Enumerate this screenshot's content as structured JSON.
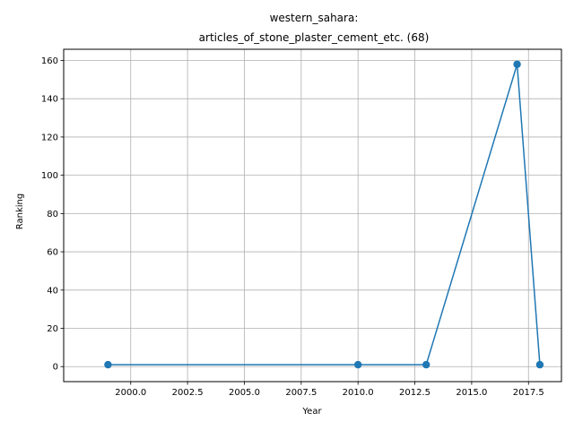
{
  "chart_data": {
    "type": "line",
    "title_lines": [
      "western_sahara:",
      "articles_of_stone_plaster_cement_etc. (68)"
    ],
    "xlabel": "Year",
    "ylabel": "Ranking",
    "xlim": [
      1997.05,
      2018.95
    ],
    "ylim": [
      -7.85,
      165.85
    ],
    "xticks": [
      2000.0,
      2002.5,
      2005.0,
      2007.5,
      2010.0,
      2012.5,
      2015.0,
      2017.5
    ],
    "xtick_labels": [
      "2000.0",
      "2002.5",
      "2005.0",
      "2007.5",
      "2010.0",
      "2012.5",
      "2015.0",
      "2017.5"
    ],
    "yticks": [
      0,
      20,
      40,
      60,
      80,
      100,
      120,
      140,
      160
    ],
    "ytick_labels": [
      "0",
      "20",
      "40",
      "60",
      "80",
      "100",
      "120",
      "140",
      "160"
    ],
    "grid": true,
    "series": [
      {
        "color": "#1f77b4",
        "x": [
          1999,
          2010,
          2013,
          2017,
          2018
        ],
        "y": [
          1,
          1,
          1,
          158,
          1
        ]
      }
    ]
  }
}
